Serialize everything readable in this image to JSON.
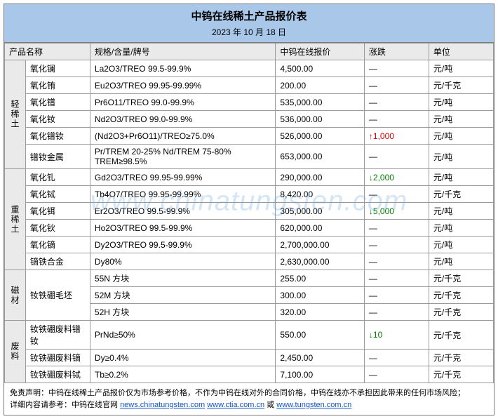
{
  "header": {
    "title": "中钨在线稀土产品报价表",
    "date": "2023 年 10 月 18 日"
  },
  "columns": {
    "name": "产品名称",
    "spec": "规格/含量/牌号",
    "price": "中钨在线报价",
    "change": "涨跌",
    "unit": "单位"
  },
  "watermark": "www.chinatungsten.com",
  "groups": [
    {
      "category": "轻稀土",
      "rows": [
        {
          "name": "氧化镧",
          "spec": "La2O3/TREO 99.5-99.9%",
          "price": "4,500.00",
          "change": "—",
          "unit": "元/吨"
        },
        {
          "name": "氧化铕",
          "spec": "Eu2O3/TREO 99.95-99.99%",
          "price": "200.00",
          "change": "—",
          "unit": "元/千克"
        },
        {
          "name": "氧化镨",
          "spec": "Pr6O11/TREO 99.0-99.9%",
          "price": "535,000.00",
          "change": "—",
          "unit": "元/吨"
        },
        {
          "name": "氧化钕",
          "spec": "Nd2O3/TREO 99.0-99.9%",
          "price": "536,000.00",
          "change": "—",
          "unit": "元/吨"
        },
        {
          "name": "氧化镨钕",
          "spec": "(Nd2O3+Pr6O11)/TREO≥75.0%",
          "price": "526,000.00",
          "change": "↑1,000",
          "unit": "元/吨"
        },
        {
          "name": "镨钕金属",
          "spec": "Pr/TREM 20-25% Nd/TREM 75-80% TREM≥98.5%",
          "price": "653,000.00",
          "change": "—",
          "unit": "元/吨"
        }
      ]
    },
    {
      "category": "重稀土",
      "rows": [
        {
          "name": "氧化钆",
          "spec": "Gd2O3/TREO 99.95-99.99%",
          "price": "290,000.00",
          "change": "↓2,000",
          "unit": "元/吨"
        },
        {
          "name": "氧化铽",
          "spec": "Tb4O7/TREO 99.95-99.99%",
          "price": "8,420.00",
          "change": "—",
          "unit": "元/千克"
        },
        {
          "name": "氧化铒",
          "spec": "Er2O3/TREO 99.5-99.9%",
          "price": "305,000.00",
          "change": "↓5,000",
          "unit": "元/吨"
        },
        {
          "name": "氧化钬",
          "spec": "Ho2O3/TREO 99.5-99.9%",
          "price": "620,000.00",
          "change": "—",
          "unit": "元/吨"
        },
        {
          "name": "氧化镝",
          "spec": "Dy2O3/TREO 99.5-99.9%",
          "price": "2,700,000.00",
          "change": "—",
          "unit": "元/吨"
        },
        {
          "name": "镝铁合金",
          "spec": "Dy80%",
          "price": "2,630,000.00",
          "change": "—",
          "unit": "元/吨"
        }
      ]
    },
    {
      "category": "磁材",
      "rows": [
        {
          "name": "钕铁硼毛坯",
          "spec": "55N 方块",
          "price": "255.00",
          "change": "—",
          "unit": "元/千克",
          "namerowspan": 3
        },
        {
          "name": "",
          "spec": "52M 方块",
          "price": "300.00",
          "change": "—",
          "unit": "元/千克"
        },
        {
          "name": "",
          "spec": "52H 方块",
          "price": "320.00",
          "change": "—",
          "unit": "元/千克"
        }
      ]
    },
    {
      "category": "废料",
      "rows": [
        {
          "name": "钕铁硼废料镨钕",
          "spec": "PrNd≥50%",
          "price": "550.00",
          "change": "↓10",
          "unit": "元/千克"
        },
        {
          "name": "钕铁硼废料镝",
          "spec": "Dy≥0.4%",
          "price": "2,450.00",
          "change": "—",
          "unit": "元/千克"
        },
        {
          "name": "钕铁硼废料铽",
          "spec": "Tb≥0.2%",
          "price": "7,100.00",
          "change": "—",
          "unit": "元/千克"
        }
      ]
    }
  ],
  "disclaimer": {
    "line1_a": "免责声明：中钨在线稀土产品报价仅为市场参考价格，不作为中钨在线对外的合同价格，中钨在线亦不承担因此带来的任何市场风险；",
    "line2_a": "详细内容请参考：中钨在线官网 ",
    "link1": "news.chinatungsten.com",
    "sep1": "  ",
    "link2": "www.ctia.com.cn",
    "sep2": "  或  ",
    "link3": "www.tungsten.com.cn"
  }
}
